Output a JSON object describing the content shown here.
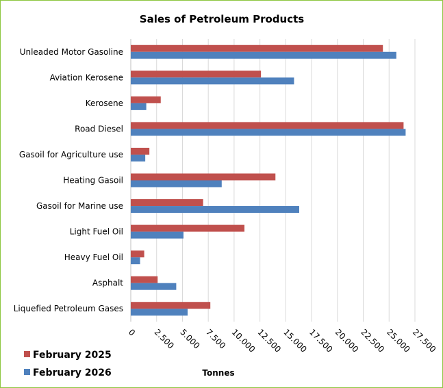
{
  "chart_data": {
    "type": "bar",
    "orientation": "horizontal",
    "title": "Sales of Petroleum Products",
    "xlabel": "Tonnes",
    "ylabel": "",
    "categories": [
      "Unleaded Motor Gasoline",
      "Aviation Kerosene",
      "Kerosene",
      "Road Diesel",
      "Gasoil for Agriculture use",
      "Heating Gasoil",
      "Gasoil for Marine use",
      "Light Fuel Oil",
      "Heavy Fuel Oil",
      "Asphalt",
      "Liquefied Petroleum Gases"
    ],
    "series": [
      {
        "name": "February 2025",
        "color": "#c0504d",
        "values": [
          24400,
          12600,
          2900,
          26400,
          1800,
          14000,
          7000,
          11000,
          1300,
          2600,
          7700
        ]
      },
      {
        "name": "February 2026",
        "color": "#4f81bd",
        "values": [
          25700,
          15800,
          1500,
          26600,
          1400,
          8800,
          16300,
          5100,
          900,
          4400,
          5500
        ]
      }
    ],
    "xlim": [
      0,
      27500
    ],
    "xticks": [
      "0",
      "2.500",
      "5.000",
      "7.500",
      "10.000",
      "12.500",
      "15.000",
      "17.500",
      "20.000",
      "22.500",
      "25.000",
      "27.500"
    ],
    "grid": true,
    "legend_position": "bottom-left"
  }
}
